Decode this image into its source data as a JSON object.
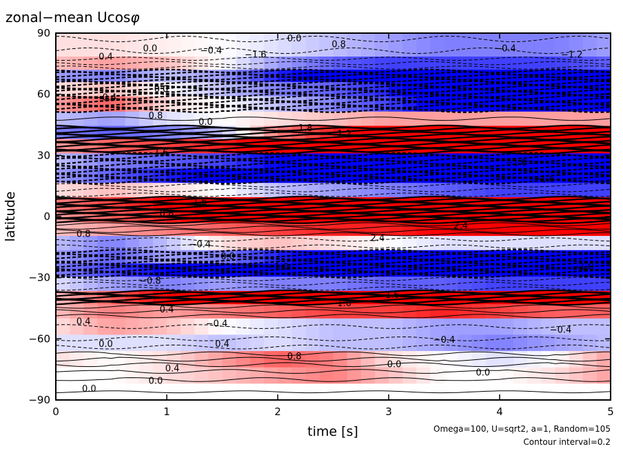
{
  "chart_data": {
    "type": "heatmap",
    "title": "zonal−mean Ucos",
    "title_symbol": "φ",
    "xlabel": "time [s]",
    "ylabel": "latitude",
    "xlim": [
      0,
      5
    ],
    "ylim": [
      -90,
      90
    ],
    "x_ticks": [
      0,
      1,
      2,
      3,
      4,
      5
    ],
    "y_ticks": [
      -90,
      -60,
      -30,
      0,
      30,
      60,
      90
    ],
    "y_tick_labels": [
      "−90",
      "−60",
      "−30",
      "0",
      "30",
      "60",
      "90"
    ],
    "footnotes": [
      "Omega=100, U=sqrt2, a=1, Random=105",
      "Contour interval=0.2"
    ],
    "contour_interval": 0.2,
    "colors": {
      "positive": "#ff0000",
      "negative": "#0000ff",
      "zero": "#ffffff",
      "contour": "#000000"
    },
    "bands": [
      {
        "lat": 82,
        "width": 5,
        "values": [
          0.2,
          0.2,
          0.1,
          0.0,
          -0.2,
          -0.4,
          -0.6,
          -0.8,
          -0.8,
          -0.8,
          -0.6
        ]
      },
      {
        "lat": 75,
        "width": 5,
        "values": [
          0.4,
          0.6,
          0.4,
          0.0,
          -0.6,
          -1.0,
          -1.2,
          -1.2,
          -1.2,
          -1.2,
          -1.0
        ]
      },
      {
        "lat": 69,
        "width": 4,
        "values": [
          -0.6,
          -0.8,
          -0.4,
          -0.6,
          -1.4,
          -1.8,
          -2.0,
          -2.0,
          -2.0,
          -2.0,
          -2.0
        ]
      },
      {
        "lat": 63,
        "width": 5,
        "values": [
          0.2,
          0.4,
          0.0,
          -0.4,
          -0.8,
          -1.0,
          -1.4,
          -2.4,
          -2.6,
          -2.6,
          -2.6
        ]
      },
      {
        "lat": 55,
        "width": 4,
        "values": [
          0.6,
          1.0,
          0.2,
          0.0,
          -0.4,
          -0.8,
          -1.2,
          -1.8,
          -2.6,
          -2.6,
          -2.6
        ]
      },
      {
        "lat": 48,
        "width": 4,
        "values": [
          -0.4,
          -0.6,
          -0.2,
          0.0,
          0.2,
          0.4,
          0.6,
          0.6,
          0.6,
          0.6,
          0.6
        ]
      },
      {
        "lat": 41,
        "width": 3,
        "values": [
          -0.8,
          -1.0,
          -0.8,
          -0.4,
          0.8,
          1.4,
          1.8,
          2.0,
          2.2,
          2.4,
          2.4
        ]
      },
      {
        "lat": 35,
        "width": 3,
        "values": [
          0.6,
          1.0,
          1.2,
          1.4,
          1.8,
          2.0,
          2.2,
          2.4,
          2.4,
          2.6,
          2.6
        ]
      },
      {
        "lat": 27,
        "width": 3,
        "values": [
          -0.4,
          -0.8,
          -1.0,
          -1.2,
          -1.6,
          -1.8,
          -2.0,
          -2.2,
          -2.0,
          -2.0,
          -2.0
        ]
      },
      {
        "lat": 20,
        "width": 4,
        "values": [
          -0.6,
          -1.0,
          -1.4,
          -1.8,
          -2.2,
          -2.4,
          -2.6,
          -2.8,
          -2.6,
          -2.2,
          -2.0
        ]
      },
      {
        "lat": 13,
        "width": 3,
        "values": [
          0.2,
          0.4,
          0.2,
          0.0,
          -0.4,
          -0.6,
          -0.8,
          -1.0,
          -1.2,
          -1.2,
          -1.2
        ]
      },
      {
        "lat": 6,
        "width": 3,
        "values": [
          0.8,
          1.2,
          1.6,
          2.0,
          2.4,
          2.6,
          2.6,
          2.6,
          2.8,
          2.8,
          2.8
        ]
      },
      {
        "lat": 0,
        "width": 3,
        "values": [
          0.6,
          1.0,
          1.4,
          1.8,
          2.0,
          2.2,
          2.4,
          2.6,
          2.6,
          2.6,
          2.6
        ]
      },
      {
        "lat": -6,
        "width": 3,
        "values": [
          0.4,
          0.6,
          0.8,
          1.0,
          1.2,
          1.4,
          1.4,
          1.6,
          1.6,
          1.6,
          1.6
        ]
      },
      {
        "lat": -13,
        "width": 4,
        "values": [
          -0.4,
          -0.8,
          -0.4,
          0.2,
          0.4,
          0.2,
          0.0,
          -0.2,
          -0.2,
          -0.2,
          -0.2
        ]
      },
      {
        "lat": -20,
        "width": 3,
        "values": [
          -0.6,
          -1.0,
          -0.6,
          -0.8,
          -1.4,
          -1.8,
          -2.0,
          -2.2,
          -2.4,
          -2.4,
          -2.4
        ]
      },
      {
        "lat": -26,
        "width": 4,
        "values": [
          -0.8,
          -1.2,
          -1.6,
          -2.0,
          -2.4,
          -2.6,
          -2.6,
          -2.8,
          -2.8,
          -2.8,
          -2.8
        ]
      },
      {
        "lat": -33,
        "width": 3,
        "values": [
          -0.2,
          -0.6,
          -0.8,
          -0.6,
          -0.8,
          -0.8,
          -1.0,
          -1.0,
          -1.2,
          -1.2,
          -1.2
        ]
      },
      {
        "lat": -40,
        "width": 3,
        "values": [
          0.4,
          1.0,
          1.6,
          2.0,
          2.4,
          2.6,
          2.6,
          2.6,
          2.4,
          2.4,
          2.4
        ]
      },
      {
        "lat": -46,
        "width": 4,
        "values": [
          0.4,
          0.8,
          0.6,
          0.8,
          1.0,
          1.2,
          1.2,
          1.4,
          1.2,
          1.0,
          1.0
        ]
      },
      {
        "lat": -54,
        "width": 4,
        "values": [
          0.2,
          0.6,
          0.4,
          0.0,
          -0.2,
          -0.4,
          -0.4,
          -0.6,
          -0.6,
          -0.4,
          -0.4
        ]
      },
      {
        "lat": -62,
        "width": 4,
        "values": [
          -0.2,
          -0.2,
          -0.2,
          -0.4,
          -0.2,
          -0.4,
          -0.4,
          -0.6,
          -0.8,
          -0.6,
          -0.4
        ]
      },
      {
        "lat": -70,
        "width": 4,
        "values": [
          0.2,
          0.0,
          0.2,
          0.6,
          1.0,
          0.8,
          0.2,
          0.0,
          -0.2,
          0.0,
          0.6
        ]
      },
      {
        "lat": -78,
        "width": 4,
        "values": [
          0.0,
          0.0,
          0.2,
          0.4,
          0.6,
          0.8,
          0.4,
          0.0,
          0.0,
          0.2,
          0.6
        ]
      },
      {
        "lat": -86,
        "width": 3,
        "values": [
          0.0,
          0.0,
          0.0,
          0.0,
          0.0,
          0.0,
          0.0,
          0.0,
          0.0,
          0.0,
          0.0
        ]
      }
    ],
    "contour_labels": [
      {
        "text": "0.0",
        "x": 0.85,
        "lat": 81
      },
      {
        "text": "0.0",
        "x": 2.15,
        "lat": 86
      },
      {
        "text": "0.8",
        "x": 2.55,
        "lat": 83
      },
      {
        "text": "−0.4",
        "x": 1.4,
        "lat": 80
      },
      {
        "text": "0.4",
        "x": 0.45,
        "lat": 77
      },
      {
        "text": "−0.4",
        "x": 4.05,
        "lat": 81
      },
      {
        "text": "−1.2",
        "x": 4.65,
        "lat": 78
      },
      {
        "text": "−1.6",
        "x": 1.8,
        "lat": 78
      },
      {
        "text": "0.0",
        "x": 0.95,
        "lat": 61
      },
      {
        "text": "−0.4",
        "x": 0.45,
        "lat": 57
      },
      {
        "text": "0.8",
        "x": 0.9,
        "lat": 48
      },
      {
        "text": "0.0",
        "x": 1.35,
        "lat": 45
      },
      {
        "text": "1.8",
        "x": 2.25,
        "lat": 42
      },
      {
        "text": "1.2",
        "x": 2.6,
        "lat": 39
      },
      {
        "text": "1.6",
        "x": 0.95,
        "lat": 30
      },
      {
        "text": "−1.6",
        "x": 4.15,
        "lat": 25
      },
      {
        "text": "−1.6",
        "x": 4.4,
        "lat": 17
      },
      {
        "text": "1.6",
        "x": 1.3,
        "lat": 6
      },
      {
        "text": "0.8",
        "x": 0.25,
        "lat": -10
      },
      {
        "text": "0.8",
        "x": 1.0,
        "lat": 0
      },
      {
        "text": "−0.4",
        "x": 1.3,
        "lat": -15
      },
      {
        "text": "0.0",
        "x": 1.55,
        "lat": -21
      },
      {
        "text": "2.4",
        "x": 2.9,
        "lat": -12
      },
      {
        "text": "2.4",
        "x": 3.65,
        "lat": -6
      },
      {
        "text": "−1.0",
        "x": 2.0,
        "lat": -26
      },
      {
        "text": "−1.0",
        "x": 4.75,
        "lat": -26
      },
      {
        "text": "−0.8",
        "x": 0.85,
        "lat": -33
      },
      {
        "text": "−1.6",
        "x": 3.0,
        "lat": -40
      },
      {
        "text": "1.6",
        "x": 2.6,
        "lat": -44
      },
      {
        "text": "0.4",
        "x": 1.0,
        "lat": -47
      },
      {
        "text": "0.4",
        "x": 0.25,
        "lat": -53
      },
      {
        "text": "−0.4",
        "x": 1.45,
        "lat": -54
      },
      {
        "text": "−0.4",
        "x": 3.5,
        "lat": -62
      },
      {
        "text": "−0.4",
        "x": 4.55,
        "lat": -57
      },
      {
        "text": "0.0",
        "x": 0.45,
        "lat": -64
      },
      {
        "text": "0.4",
        "x": 1.5,
        "lat": -64
      },
      {
        "text": "0.8",
        "x": 2.15,
        "lat": -70
      },
      {
        "text": "0.0",
        "x": 3.05,
        "lat": -74
      },
      {
        "text": "0.4",
        "x": 1.05,
        "lat": -76
      },
      {
        "text": "0.0",
        "x": 0.9,
        "lat": -82
      },
      {
        "text": "0.0",
        "x": 0.3,
        "lat": -86
      },
      {
        "text": "0.0",
        "x": 3.85,
        "lat": -78
      }
    ]
  }
}
